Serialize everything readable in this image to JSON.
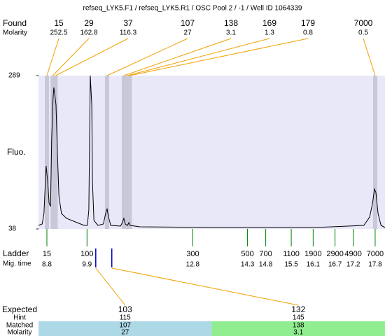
{
  "chart_data": {
    "type": "electropherogram",
    "title": "refseq_LYK5.F1 / refseq_LYK5.R1 / OSC Pool 2 / -1 / Well ID 1064339",
    "found_label": "Found",
    "found_molarity_label": "Molarity",
    "found_sizes": [
      15,
      29,
      37,
      107,
      138,
      169,
      179,
      7000
    ],
    "found_molarity": [
      252.5,
      162.8,
      116.3,
      27,
      3.1,
      1.3,
      0.8,
      0.5
    ],
    "found_mig_times": [
      8.8,
      8.96,
      9.04,
      10.45,
      10.91,
      11.01,
      11.07,
      17.8
    ],
    "y_label": "Fluo.",
    "ylim": [
      38,
      289
    ],
    "yticks": [
      38,
      289
    ],
    "xlim": [
      8.57,
      18.07
    ],
    "color": "#000000",
    "x": [
      8.57,
      8.67,
      8.72,
      8.78,
      8.82,
      8.86,
      8.9,
      8.93,
      8.97,
      8.99,
      9.01,
      9.05,
      9.09,
      9.13,
      9.2,
      9.34,
      9.63,
      9.82,
      9.91,
      9.95,
      9.99,
      10.03,
      10.05,
      10.09,
      10.2,
      10.35,
      10.41,
      10.45,
      10.49,
      10.55,
      10.82,
      10.87,
      10.91,
      10.95,
      11.01,
      11.05,
      11.08,
      11.35,
      13.27,
      16.15,
      17.49,
      17.65,
      17.73,
      17.78,
      17.82,
      17.88,
      17.96,
      18.07
    ],
    "values": [
      43.7,
      46.0,
      63.2,
      141.1,
      117.1,
      80.4,
      74.7,
      183.5,
      252.3,
      269.5,
      261.5,
      240.8,
      160.6,
      91.9,
      63.2,
      55.2,
      48.3,
      43.7,
      43.7,
      68.9,
      289,
      240.8,
      114.8,
      51.8,
      43.7,
      46.0,
      63.2,
      71.2,
      57.5,
      43.7,
      42.6,
      48.3,
      55.2,
      46.0,
      43.7,
      48.3,
      43.7,
      41.4,
      40.3,
      40.3,
      43.7,
      57.5,
      80.4,
      103.3,
      97.6,
      63.2,
      43.7,
      40.3
    ],
    "ladder_label": "Ladder",
    "mig_time_label": "Mig. time",
    "ladder_sizes": [
      15,
      100,
      300,
      500,
      700,
      1100,
      1900,
      2900,
      4900,
      7000
    ],
    "ladder_mig_times": [
      8.8,
      9.9,
      12.8,
      14.3,
      14.8,
      15.5,
      16.1,
      16.7,
      17.2,
      17.8
    ],
    "expected_label": "Expected",
    "hint_label": "Hint",
    "matched_label": "Matched",
    "matched_molarity_label": "Molarity",
    "expected": [
      103,
      132
    ],
    "expected_mig_times": [
      10.14,
      10.58
    ],
    "hint": [
      115,
      145
    ],
    "matched": [
      107,
      138
    ],
    "matched_molarity": [
      27,
      3.1
    ],
    "matched_colors": [
      "#add8e6",
      "#90ee90"
    ]
  }
}
